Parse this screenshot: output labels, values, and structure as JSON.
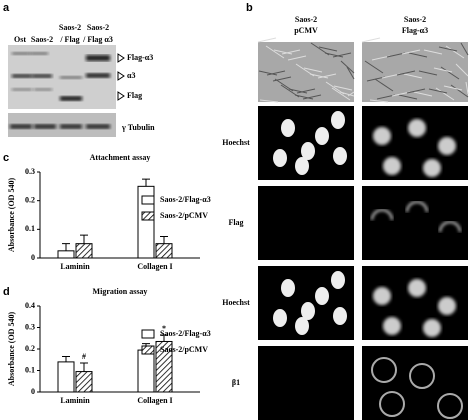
{
  "panel_a": {
    "label": "a",
    "lanes": [
      [
        "Ost"
      ],
      [
        "Saos-2"
      ],
      [
        "Saos-2",
        "/ Flag"
      ],
      [
        "Saos-2",
        "/ Flag α3"
      ]
    ],
    "bands": [
      "Flag-α3",
      "α3",
      "Flag",
      "γ Tubulin"
    ]
  },
  "panel_b": {
    "label": "b",
    "columns": [
      [
        "Saos-2",
        "pCMV"
      ],
      [
        "Saos-2",
        "Flag-α3"
      ]
    ],
    "rows": [
      "Hoechst",
      "Flag",
      "Hoechst",
      "β1"
    ]
  },
  "chart_data": [
    {
      "type": "bar",
      "panel": "c",
      "title": "Attachment assay",
      "ylabel": "Absorbance (OD 540)",
      "categories": [
        "Laminin",
        "Collagen I"
      ],
      "series": [
        {
          "name": "Saos-2/Flag-α3",
          "color": "#ffffff",
          "pattern": "none",
          "values": [
            0.025,
            0.25
          ],
          "errors": [
            0.025,
            0.025
          ]
        },
        {
          "name": "Saos-2/pCMV",
          "color": "#ffffff",
          "pattern": "hatch",
          "values": [
            0.05,
            0.05
          ],
          "errors": [
            0.03,
            0.025
          ]
        }
      ],
      "ylim": [
        0,
        0.3
      ],
      "yticks": [
        0,
        0.1,
        0.2,
        0.3
      ],
      "annotations": []
    },
    {
      "type": "bar",
      "panel": "d",
      "title": "Migration assay",
      "ylabel": "Absorbance (OD 540)",
      "categories": [
        "Laminin",
        "Collagen I"
      ],
      "series": [
        {
          "name": "Saos-2/Flag-α3",
          "color": "#ffffff",
          "pattern": "none",
          "values": [
            0.14,
            0.195
          ],
          "errors": [
            0.025,
            0.03
          ]
        },
        {
          "name": "Saos-2/pCMV",
          "color": "#ffffff",
          "pattern": "hatch",
          "values": [
            0.095,
            0.235
          ],
          "errors": [
            0.04,
            0.03
          ]
        }
      ],
      "ylim": [
        0,
        0.4
      ],
      "yticks": [
        0,
        0.1,
        0.2,
        0.3,
        0.4
      ],
      "annotations": [
        "#",
        "*"
      ]
    }
  ]
}
